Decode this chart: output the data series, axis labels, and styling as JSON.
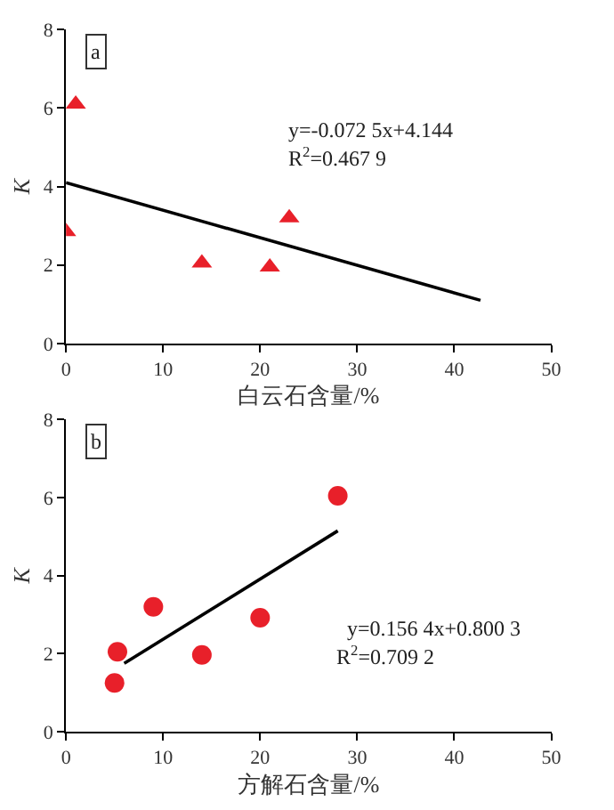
{
  "chart_data": [
    {
      "type": "scatter",
      "xlabel": "白云石含量/%",
      "ylabel": "K",
      "xlim": [
        0,
        50
      ],
      "xticks": [
        0,
        10,
        20,
        30,
        40,
        50
      ],
      "ylim": [
        0,
        8
      ],
      "yticks": [
        0,
        2,
        4,
        6,
        8
      ],
      "annotations": [
        "a",
        "y=-0.072 5x+4.144",
        "R$^{2}$=0.467 9"
      ],
      "series": [
        {
          "marker": "triangle",
          "color": "#e8202a",
          "x": [
            0,
            1,
            14,
            21,
            23
          ],
          "values": [
            2.85,
            6.1,
            2.05,
            1.95,
            3.2
          ]
        },
        {
          "type": "line",
          "marker": "none",
          "color": "#000000",
          "x": [
            0,
            42.7
          ],
          "values": [
            4.1,
            1.1
          ]
        }
      ]
    },
    {
      "type": "scatter",
      "xlabel": "方解石含量/%",
      "ylabel": "K",
      "xlim": [
        0,
        50
      ],
      "xticks": [
        0,
        10,
        20,
        30,
        40,
        50
      ],
      "ylim": [
        0,
        8
      ],
      "yticks": [
        0,
        2,
        4,
        6,
        8
      ],
      "annotations": [
        "b",
        "y=0.156 4x+0.800 3",
        "R$^{2}$=0.709 2"
      ],
      "series": [
        {
          "marker": "circle",
          "color": "#e8202a",
          "x": [
            5,
            5.3,
            9,
            14,
            20,
            28
          ],
          "values": [
            1.25,
            2.05,
            3.2,
            1.97,
            2.92,
            6.05
          ]
        },
        {
          "type": "line",
          "marker": "none",
          "color": "#000000",
          "x": [
            6,
            28
          ],
          "values": [
            1.75,
            5.15
          ]
        }
      ]
    }
  ]
}
